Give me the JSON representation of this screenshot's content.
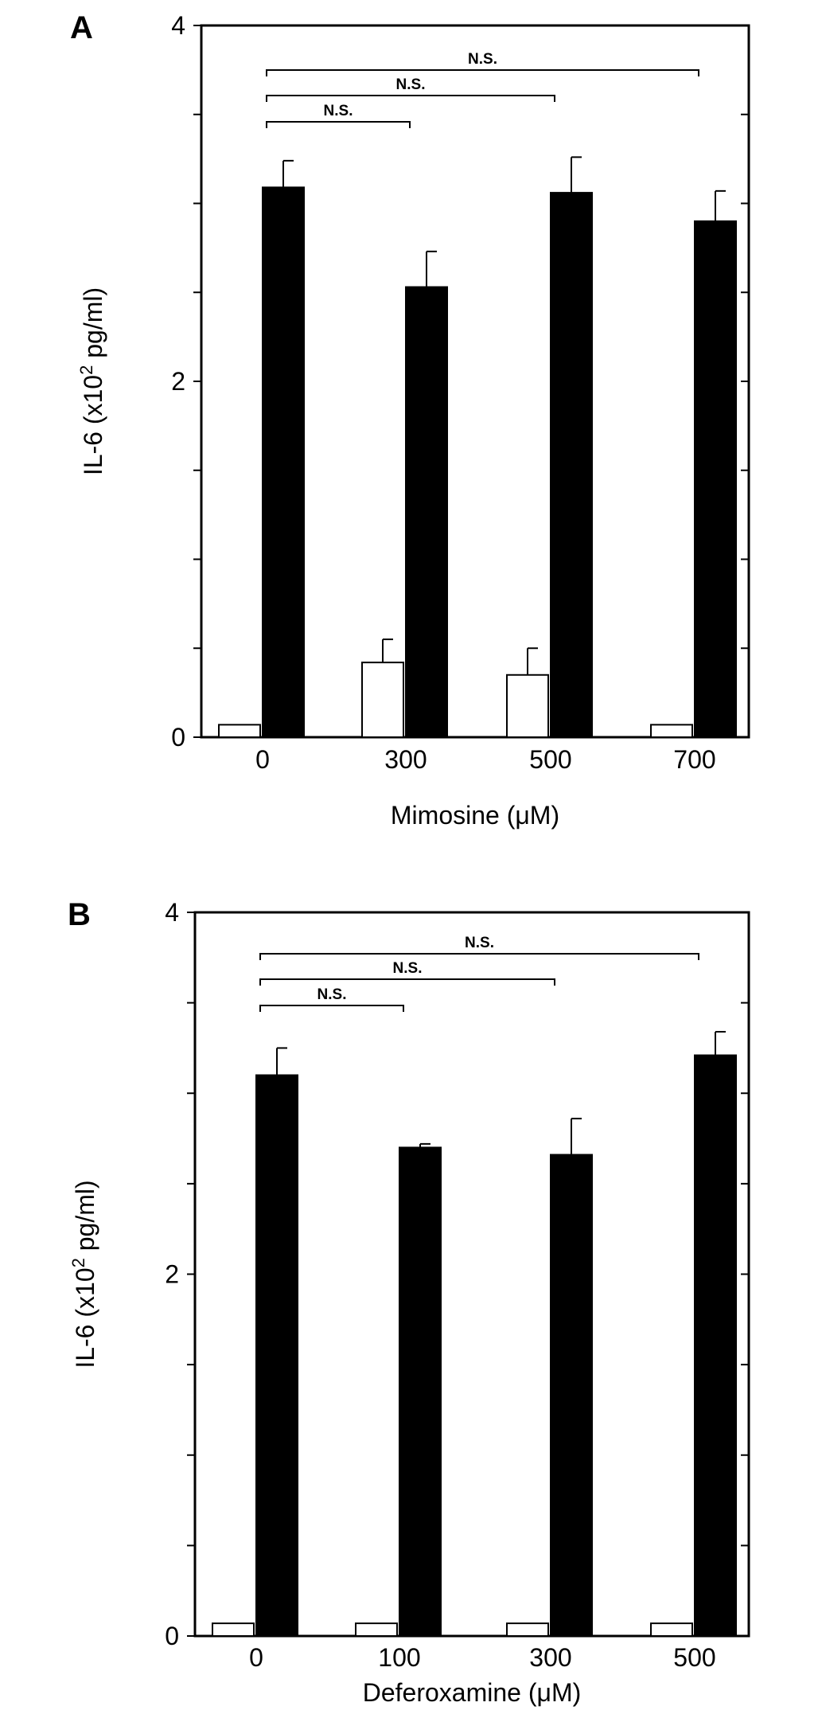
{
  "chart_data": [
    {
      "type": "bar",
      "panel_label": "A",
      "categories": [
        "0",
        "300",
        "500",
        "700"
      ],
      "xlabel": "Mimosine (μM)",
      "ylabel_main": "IL-6 (x10",
      "ylabel_sup": "2",
      "ylabel_end": " pg/ml)",
      "ylim": [
        0,
        4
      ],
      "yticks": [
        "0",
        "2",
        "4"
      ],
      "series": [
        {
          "color": "#ffffff",
          "values": [
            0.07,
            0.42,
            0.35,
            0.07
          ],
          "errors": [
            0,
            0.13,
            0.15,
            0
          ]
        },
        {
          "color": "#000000",
          "values": [
            3.09,
            2.53,
            3.06,
            2.9
          ],
          "errors": [
            0.15,
            0.2,
            0.2,
            0.17
          ]
        }
      ],
      "significance": [
        {
          "from": 0,
          "to": 1,
          "label": "N.S."
        },
        {
          "from": 0,
          "to": 2,
          "label": "N.S."
        },
        {
          "from": 0,
          "to": 3,
          "label": "N.S."
        }
      ]
    },
    {
      "type": "bar",
      "panel_label": "B",
      "categories": [
        "0",
        "100",
        "300",
        "500"
      ],
      "xlabel": "Deferoxamine (μM)",
      "ylabel_main": "IL-6 (x10",
      "ylabel_sup": "2",
      "ylabel_end": " pg/ml)",
      "ylim": [
        0,
        4
      ],
      "yticks": [
        "0",
        "2",
        "4"
      ],
      "series": [
        {
          "color": "#ffffff",
          "values": [
            0.07,
            0.07,
            0.07,
            0.07
          ],
          "errors": [
            0,
            0,
            0,
            0
          ]
        },
        {
          "color": "#000000",
          "values": [
            3.1,
            2.7,
            2.66,
            3.21
          ],
          "errors": [
            0.15,
            0.02,
            0.2,
            0.13
          ]
        }
      ],
      "significance": [
        {
          "from": 0,
          "to": 1,
          "label": "N.S."
        },
        {
          "from": 0,
          "to": 2,
          "label": "N.S."
        },
        {
          "from": 0,
          "to": 3,
          "label": "N.S."
        }
      ]
    }
  ]
}
